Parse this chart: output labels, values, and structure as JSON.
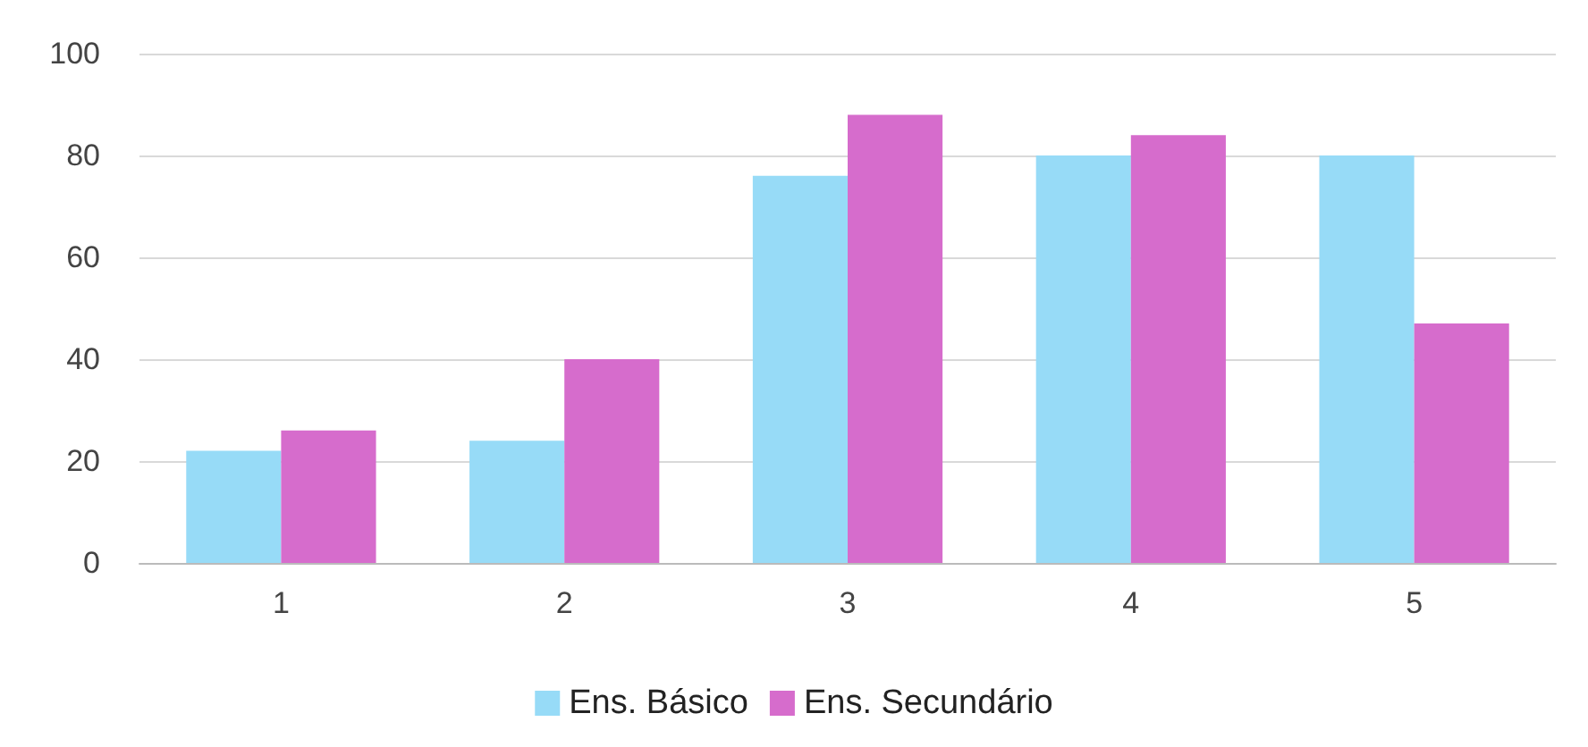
{
  "chart_data": {
    "type": "bar",
    "categories": [
      "1",
      "2",
      "3",
      "4",
      "5"
    ],
    "series": [
      {
        "name": "Ens. Básico",
        "color": "#97dbf7",
        "values": [
          22,
          24,
          76,
          80,
          80
        ]
      },
      {
        "name": "Ens. Secundário",
        "color": "#d66ccc",
        "values": [
          26,
          40,
          88,
          84,
          47
        ]
      }
    ],
    "ylim": [
      0,
      100
    ],
    "yticks": [
      0,
      20,
      40,
      60,
      80,
      100
    ],
    "grid": "y",
    "legend": "bottom"
  }
}
